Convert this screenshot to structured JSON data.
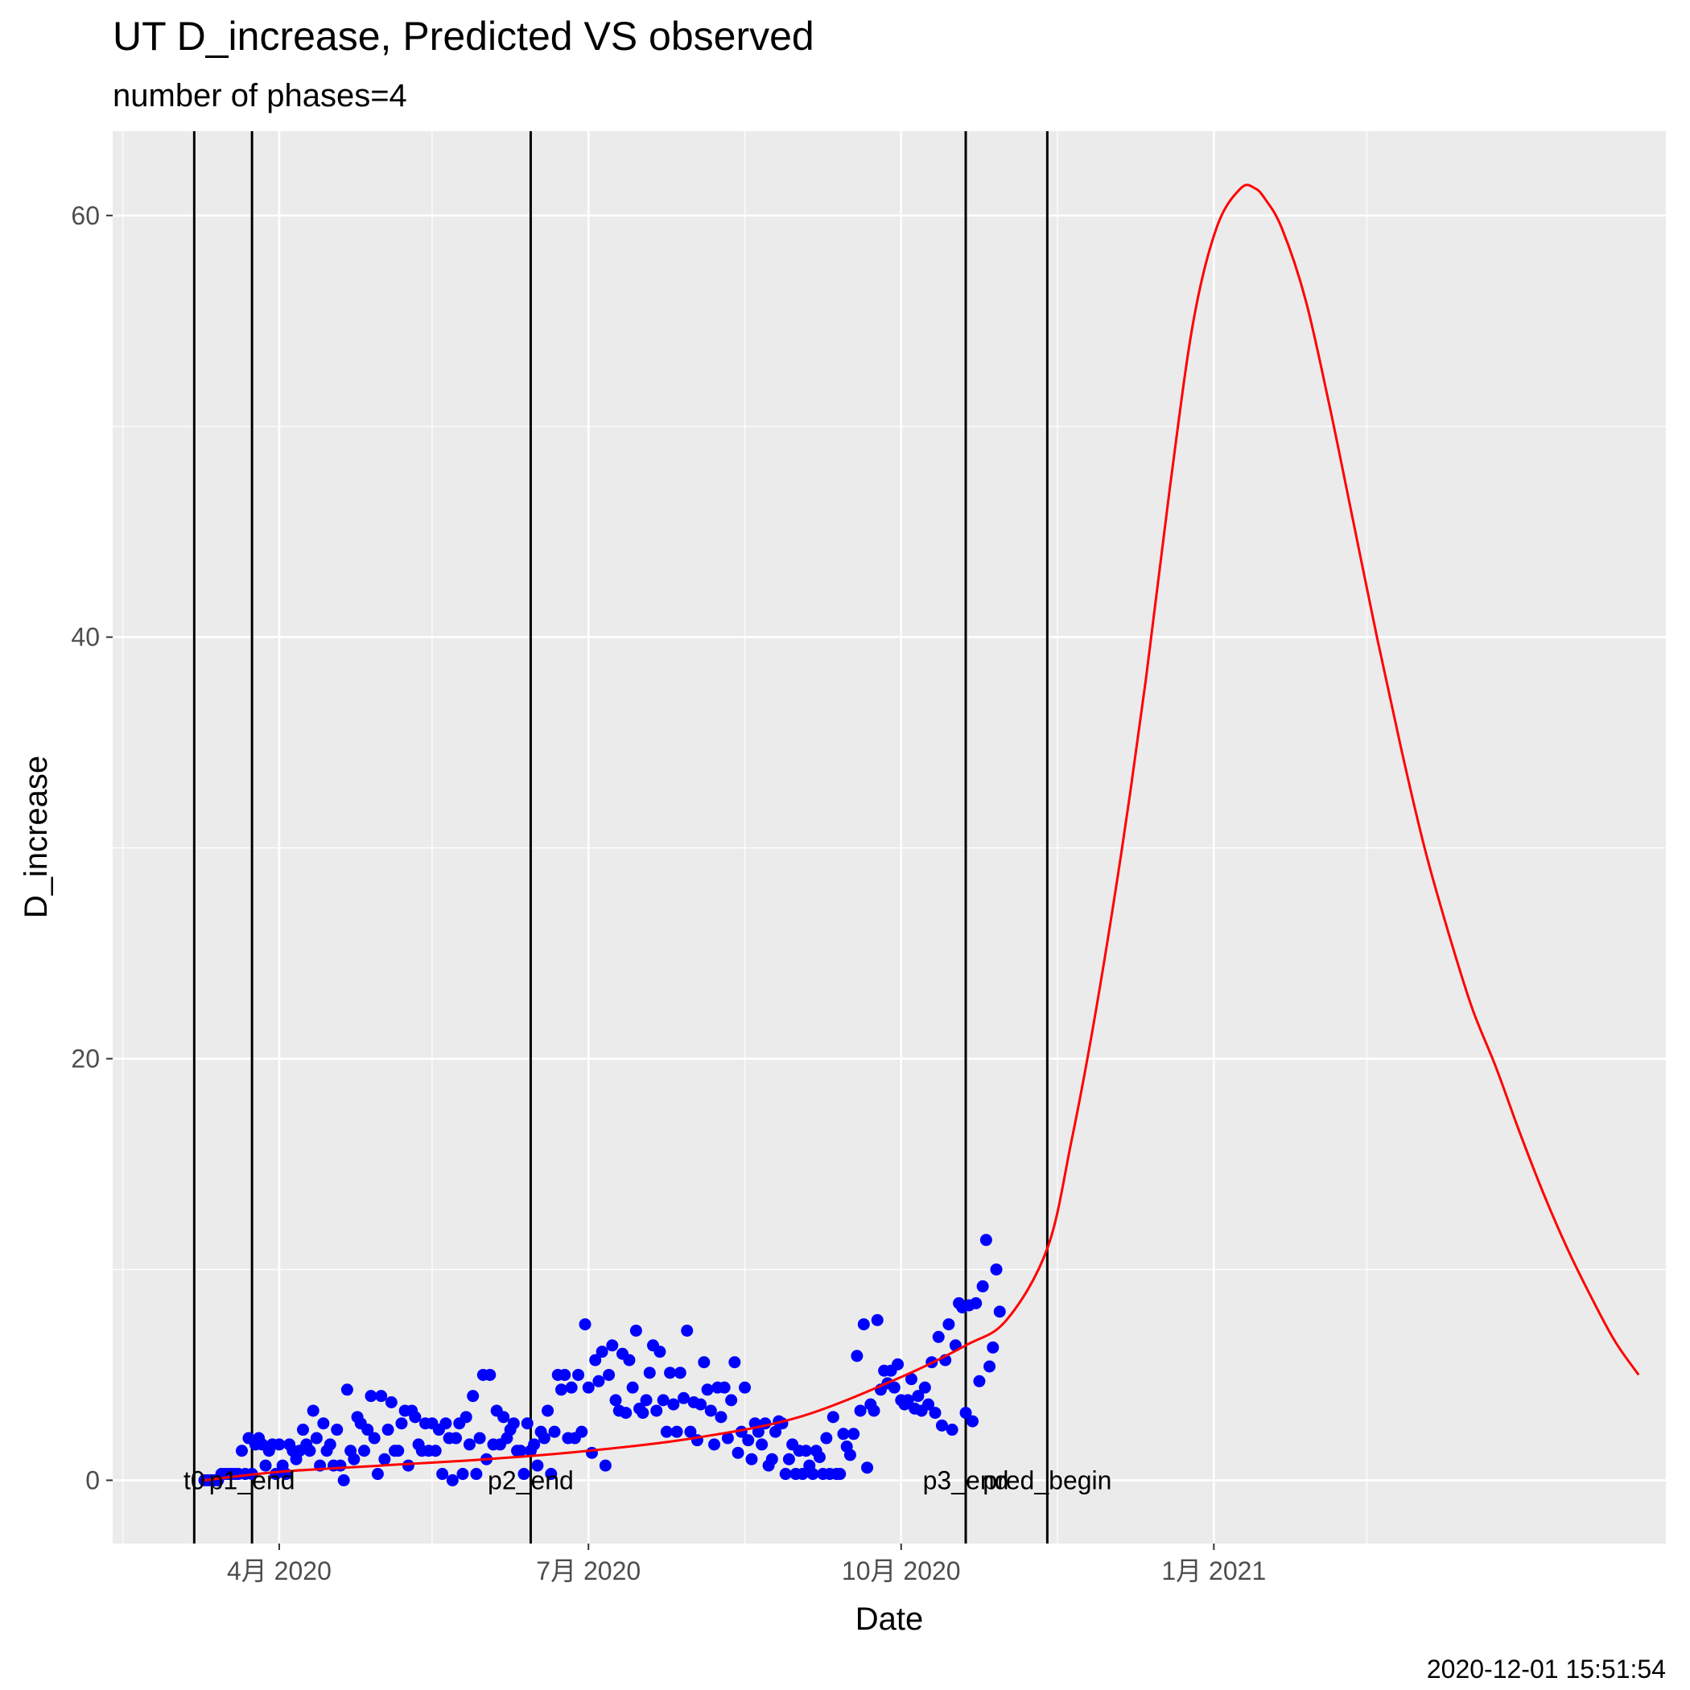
{
  "chart_data": {
    "type": "scatter",
    "title": "UT D_increase, Predicted VS observed",
    "subtitle": "number of phases=4",
    "xlabel": "Date",
    "ylabel": "D_increase",
    "caption": "2020-12-01 15:51:54",
    "x_range": [
      "2020-02-12",
      "2021-05-14"
    ],
    "ylim": [
      -3,
      64
    ],
    "x_ticks": [
      {
        "date": "2020-04-01",
        "label": "4月 2020"
      },
      {
        "date": "2020-07-01",
        "label": "7月 2020"
      },
      {
        "date": "2020-10-01",
        "label": "10月 2020"
      },
      {
        "date": "2021-01-01",
        "label": "1月 2021"
      }
    ],
    "x_minor_ticks": [
      "2020-02-15",
      "2020-05-16",
      "2020-08-16",
      "2020-11-16",
      "2021-02-15"
    ],
    "y_ticks": [
      0,
      20,
      40,
      60
    ],
    "y_minor_ticks": [
      10,
      30,
      50
    ],
    "grid": true,
    "colors": {
      "panel": "#ebebeb",
      "grid": "#ffffff",
      "observed": "#0000ff",
      "predicted": "#ff0000",
      "phase_line": "#000000"
    },
    "phase_markers": [
      {
        "label": "t0",
        "date": "2020-03-07"
      },
      {
        "label": "p1_end",
        "date": "2020-03-24"
      },
      {
        "label": "p2_end",
        "date": "2020-06-14"
      },
      {
        "label": "p3_end",
        "date": "2020-10-20"
      },
      {
        "label": "pred_begin",
        "date": "2020-11-13"
      }
    ],
    "series": [
      {
        "kind": "observed",
        "start": "2020-03-10",
        "values": [
          0,
          0,
          0,
          0,
          0,
          0.3,
          0.3,
          0.3,
          0.3,
          0.3,
          0.3,
          1.4,
          0.3,
          2,
          0.3,
          1.7,
          2,
          1.7,
          0.7,
          1.4,
          1.7,
          0.3,
          1.7,
          0.7,
          0.3,
          1.7,
          1.4,
          1,
          1.4,
          2.4,
          1.7,
          1.4,
          3.3,
          2,
          0.7,
          2.7,
          1.4,
          1.7,
          0.7,
          2.4,
          0.7,
          0,
          4.3,
          1.4,
          1,
          3,
          2.7,
          1.4,
          2.4,
          4,
          2,
          0.3,
          4,
          1,
          2.4,
          3.7,
          1.4,
          1.4,
          2.7,
          3.3,
          0.7,
          3.3,
          3,
          1.7,
          1.4,
          2.7,
          1.4,
          2.7,
          1.4,
          2.4,
          0.3,
          2.7,
          2,
          0,
          2,
          2.7,
          0.3,
          3,
          1.7,
          4,
          0.3,
          2,
          5,
          1,
          5,
          1.7,
          3.3,
          1.7,
          3,
          2,
          2.4,
          2.7,
          1.4,
          1.4,
          0.3,
          2.7,
          1.4,
          1.7,
          0.7,
          2.3,
          2,
          3.3,
          0.3,
          2.3,
          5,
          4.3,
          5,
          2,
          4.4,
          2,
          5,
          2.3,
          7.4,
          4.4,
          1.3,
          5.7,
          4.7,
          6.1,
          0.7,
          5,
          6.4,
          3.8,
          3.3,
          6,
          3.2,
          5.7,
          4.4,
          7.1,
          3.4,
          3.2,
          3.8,
          5.1,
          6.4,
          3.3,
          6.1,
          3.8,
          2.3,
          5.1,
          3.6,
          2.3,
          5.1,
          3.9,
          7.1,
          2.3,
          3.7,
          1.9,
          3.6,
          5.6,
          4.3,
          3.3,
          1.7,
          4.4,
          3,
          4.4,
          2,
          3.8,
          5.6,
          1.3,
          2.3,
          4.4,
          1.9,
          1,
          2.7,
          2.3,
          1.7,
          2.7,
          0.7,
          1,
          2.3,
          2.8,
          2.7,
          0.3,
          1,
          1.7,
          0.3,
          1.4,
          0.3,
          1.4,
          0.7,
          0.3,
          1.4,
          1.1,
          0.3,
          2,
          0.3,
          3,
          0.3,
          0.3,
          2.2,
          1.6,
          1.2,
          2.2,
          5.9,
          3.3,
          7.4,
          0.6,
          3.6,
          3.3,
          7.6,
          4.3,
          5.2,
          4.6,
          5.2,
          4.4,
          5.5,
          3.8,
          3.6,
          3.8,
          4.8,
          3.4,
          4,
          3.3,
          4.4,
          3.6,
          5.6,
          3.2,
          6.8,
          2.6,
          5.7,
          7.4,
          2.4,
          6.4,
          8.4,
          8.2,
          3.2,
          8.3,
          2.8,
          8.4,
          4.7,
          9.2,
          11.4,
          5.4,
          6.3,
          10,
          8
        ]
      },
      {
        "kind": "predicted",
        "x": [
          "2020-03-10",
          "2020-04-01",
          "2020-05-01",
          "2020-06-01",
          "2020-07-01",
          "2020-08-01",
          "2020-09-01",
          "2020-10-01",
          "2020-10-20",
          "2020-11-01",
          "2020-11-13",
          "2020-11-20",
          "2020-11-27",
          "2020-12-05",
          "2020-12-12",
          "2020-12-19",
          "2020-12-26",
          "2021-01-02",
          "2021-01-09",
          "2021-01-13",
          "2021-01-16",
          "2021-01-21",
          "2021-01-28",
          "2021-02-04",
          "2021-02-11",
          "2021-02-18",
          "2021-02-25",
          "2021-03-04",
          "2021-03-11",
          "2021-03-18",
          "2021-03-25",
          "2021-04-01",
          "2021-04-08",
          "2021-04-15",
          "2021-04-22",
          "2021-04-29",
          "2021-05-06"
        ],
        "values": [
          0,
          0.4,
          0.7,
          1,
          1.4,
          2,
          3,
          4.9,
          6.4,
          7.6,
          11,
          16,
          22,
          30,
          38,
          47,
          55,
          59.5,
          61.3,
          61.3,
          60.8,
          59.4,
          56,
          51,
          45.5,
          40,
          34.8,
          30,
          26,
          22.4,
          19.6,
          16.5,
          13.6,
          11,
          8.7,
          6.6,
          5
        ]
      }
    ]
  }
}
